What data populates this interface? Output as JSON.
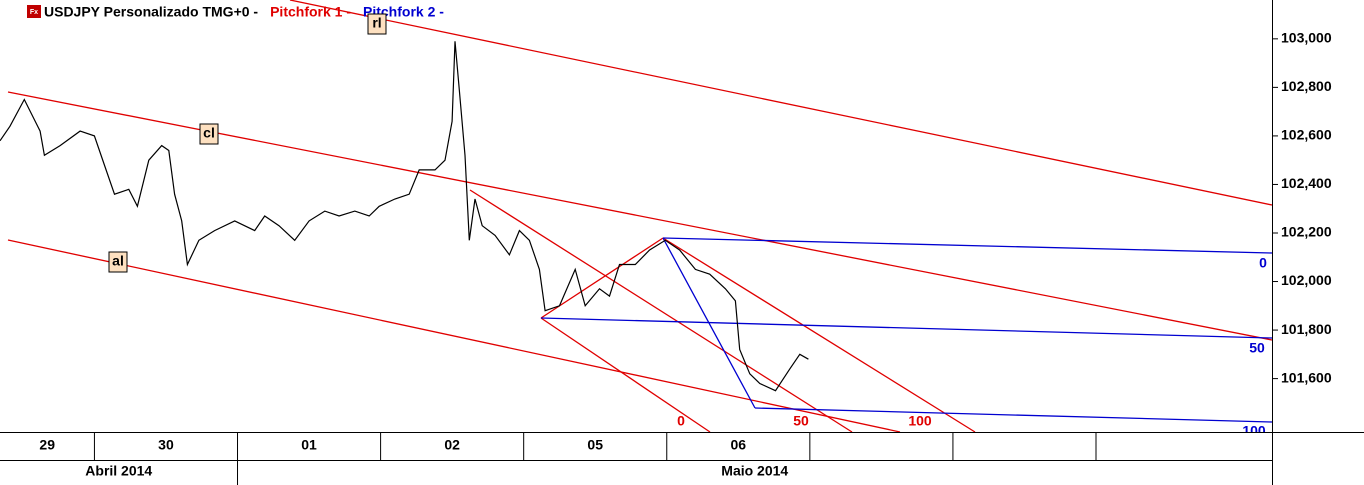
{
  "chart_data": {
    "type": "line",
    "icon": "Fx",
    "title": "USDJPY Personalizado TMG+0 -",
    "subtitles": [
      {
        "text": "Pitchfork 1 -",
        "color": "#e00000"
      },
      {
        "text": "Pitchfork 2 -",
        "color": "#0000d0"
      }
    ],
    "categories": [
      "29",
      "30",
      "01",
      "02",
      "05",
      "06",
      null,
      null,
      null,
      null
    ],
    "month_labels": [
      "Abril 2014",
      "Maio 2014"
    ],
    "month_starts": [
      0,
      2
    ],
    "xlim": [
      -0.66,
      8.23
    ],
    "ylim": [
      101.38,
      103.16
    ],
    "yticks": [
      {
        "value": 101.6,
        "label": "101,600"
      },
      {
        "value": 101.8,
        "label": "101,800"
      },
      {
        "value": 102.0,
        "label": "102,000"
      },
      {
        "value": 102.2,
        "label": "102,200"
      },
      {
        "value": 102.4,
        "label": "102,400"
      },
      {
        "value": 102.6,
        "label": "102,600"
      },
      {
        "value": 102.8,
        "label": "102,800"
      },
      {
        "value": 103.0,
        "label": "103,000"
      }
    ],
    "series": [
      {
        "color": "#000000",
        "x": [
          -0.66,
          -0.59,
          -0.49,
          -0.38,
          -0.35,
          -0.24,
          -0.1,
          0,
          0.07,
          0.14,
          0.24,
          0.3,
          0.38,
          0.47,
          0.52,
          0.56,
          0.61,
          0.65,
          0.73,
          0.84,
          0.98,
          1.12,
          1.19,
          1.29,
          1.4,
          1.5,
          1.61,
          1.71,
          1.82,
          1.92,
          1.99,
          2.1,
          2.2,
          2.27,
          2.38,
          2.45,
          2.5,
          2.52,
          2.55,
          2.59,
          2.62,
          2.66,
          2.71,
          2.8,
          2.9,
          2.97,
          3.04,
          3.11,
          3.15,
          3.25,
          3.36,
          3.43,
          3.53,
          3.6,
          3.67,
          3.78,
          3.88,
          3.99,
          4.09,
          4.2,
          4.3,
          4.41,
          4.48,
          4.51,
          4.58,
          4.65,
          4.76,
          4.86,
          4.93,
          4.99
        ],
        "values": [
          102.58,
          102.64,
          102.75,
          102.62,
          102.52,
          102.56,
          102.62,
          102.6,
          102.48,
          102.36,
          102.38,
          102.31,
          102.5,
          102.56,
          102.54,
          102.36,
          102.25,
          102.07,
          102.17,
          102.21,
          102.25,
          102.21,
          102.27,
          102.23,
          102.17,
          102.25,
          102.29,
          102.27,
          102.29,
          102.27,
          102.31,
          102.34,
          102.36,
          102.46,
          102.46,
          102.5,
          102.66,
          102.99,
          102.79,
          102.52,
          102.17,
          102.34,
          102.23,
          102.19,
          102.11,
          102.21,
          102.17,
          102.05,
          101.88,
          101.9,
          102.05,
          101.9,
          101.97,
          101.94,
          102.07,
          102.07,
          102.13,
          102.17,
          102.13,
          102.05,
          102.03,
          101.97,
          101.92,
          101.72,
          101.62,
          101.58,
          101.55,
          101.64,
          101.7,
          101.68
        ]
      }
    ],
    "line_labels": [
      "rl",
      "cl",
      "al"
    ],
    "red_levels": [
      "0",
      "50",
      "100"
    ],
    "blue_levels": [
      "0",
      "50",
      "100"
    ]
  }
}
